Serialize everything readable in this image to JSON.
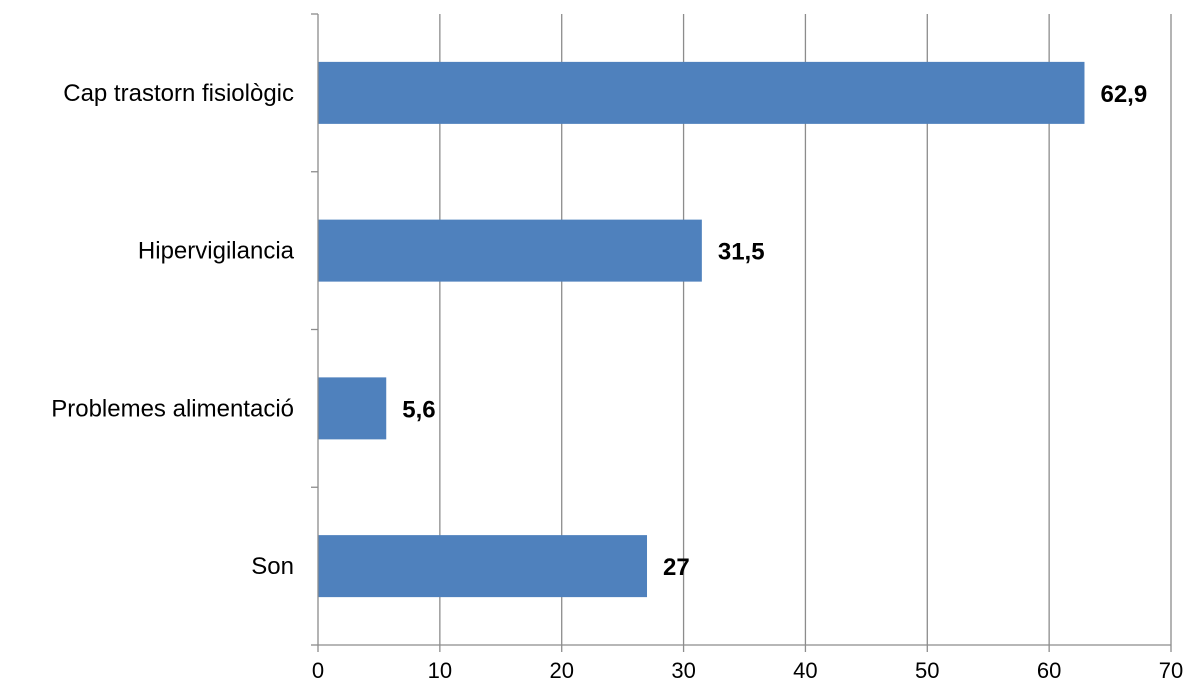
{
  "chart_data": {
    "type": "bar",
    "orientation": "horizontal",
    "categories": [
      "Cap trastorn fisiològic",
      "Hipervigilancia",
      "Problemes alimentació",
      "Son"
    ],
    "values": [
      62.9,
      31.5,
      5.6,
      27
    ],
    "data_labels": [
      "62,9",
      "31,5",
      "5,6",
      "27"
    ],
    "xlim": [
      0,
      70
    ],
    "xticks": [
      0,
      10,
      20,
      30,
      40,
      50,
      60,
      70
    ],
    "title": "",
    "xlabel": "",
    "ylabel": "",
    "grid": "vertical",
    "legend": "none",
    "colors": {
      "bar": "#4f81bd",
      "grid": "#8c8c8c",
      "axis": "#8c8c8c"
    }
  }
}
